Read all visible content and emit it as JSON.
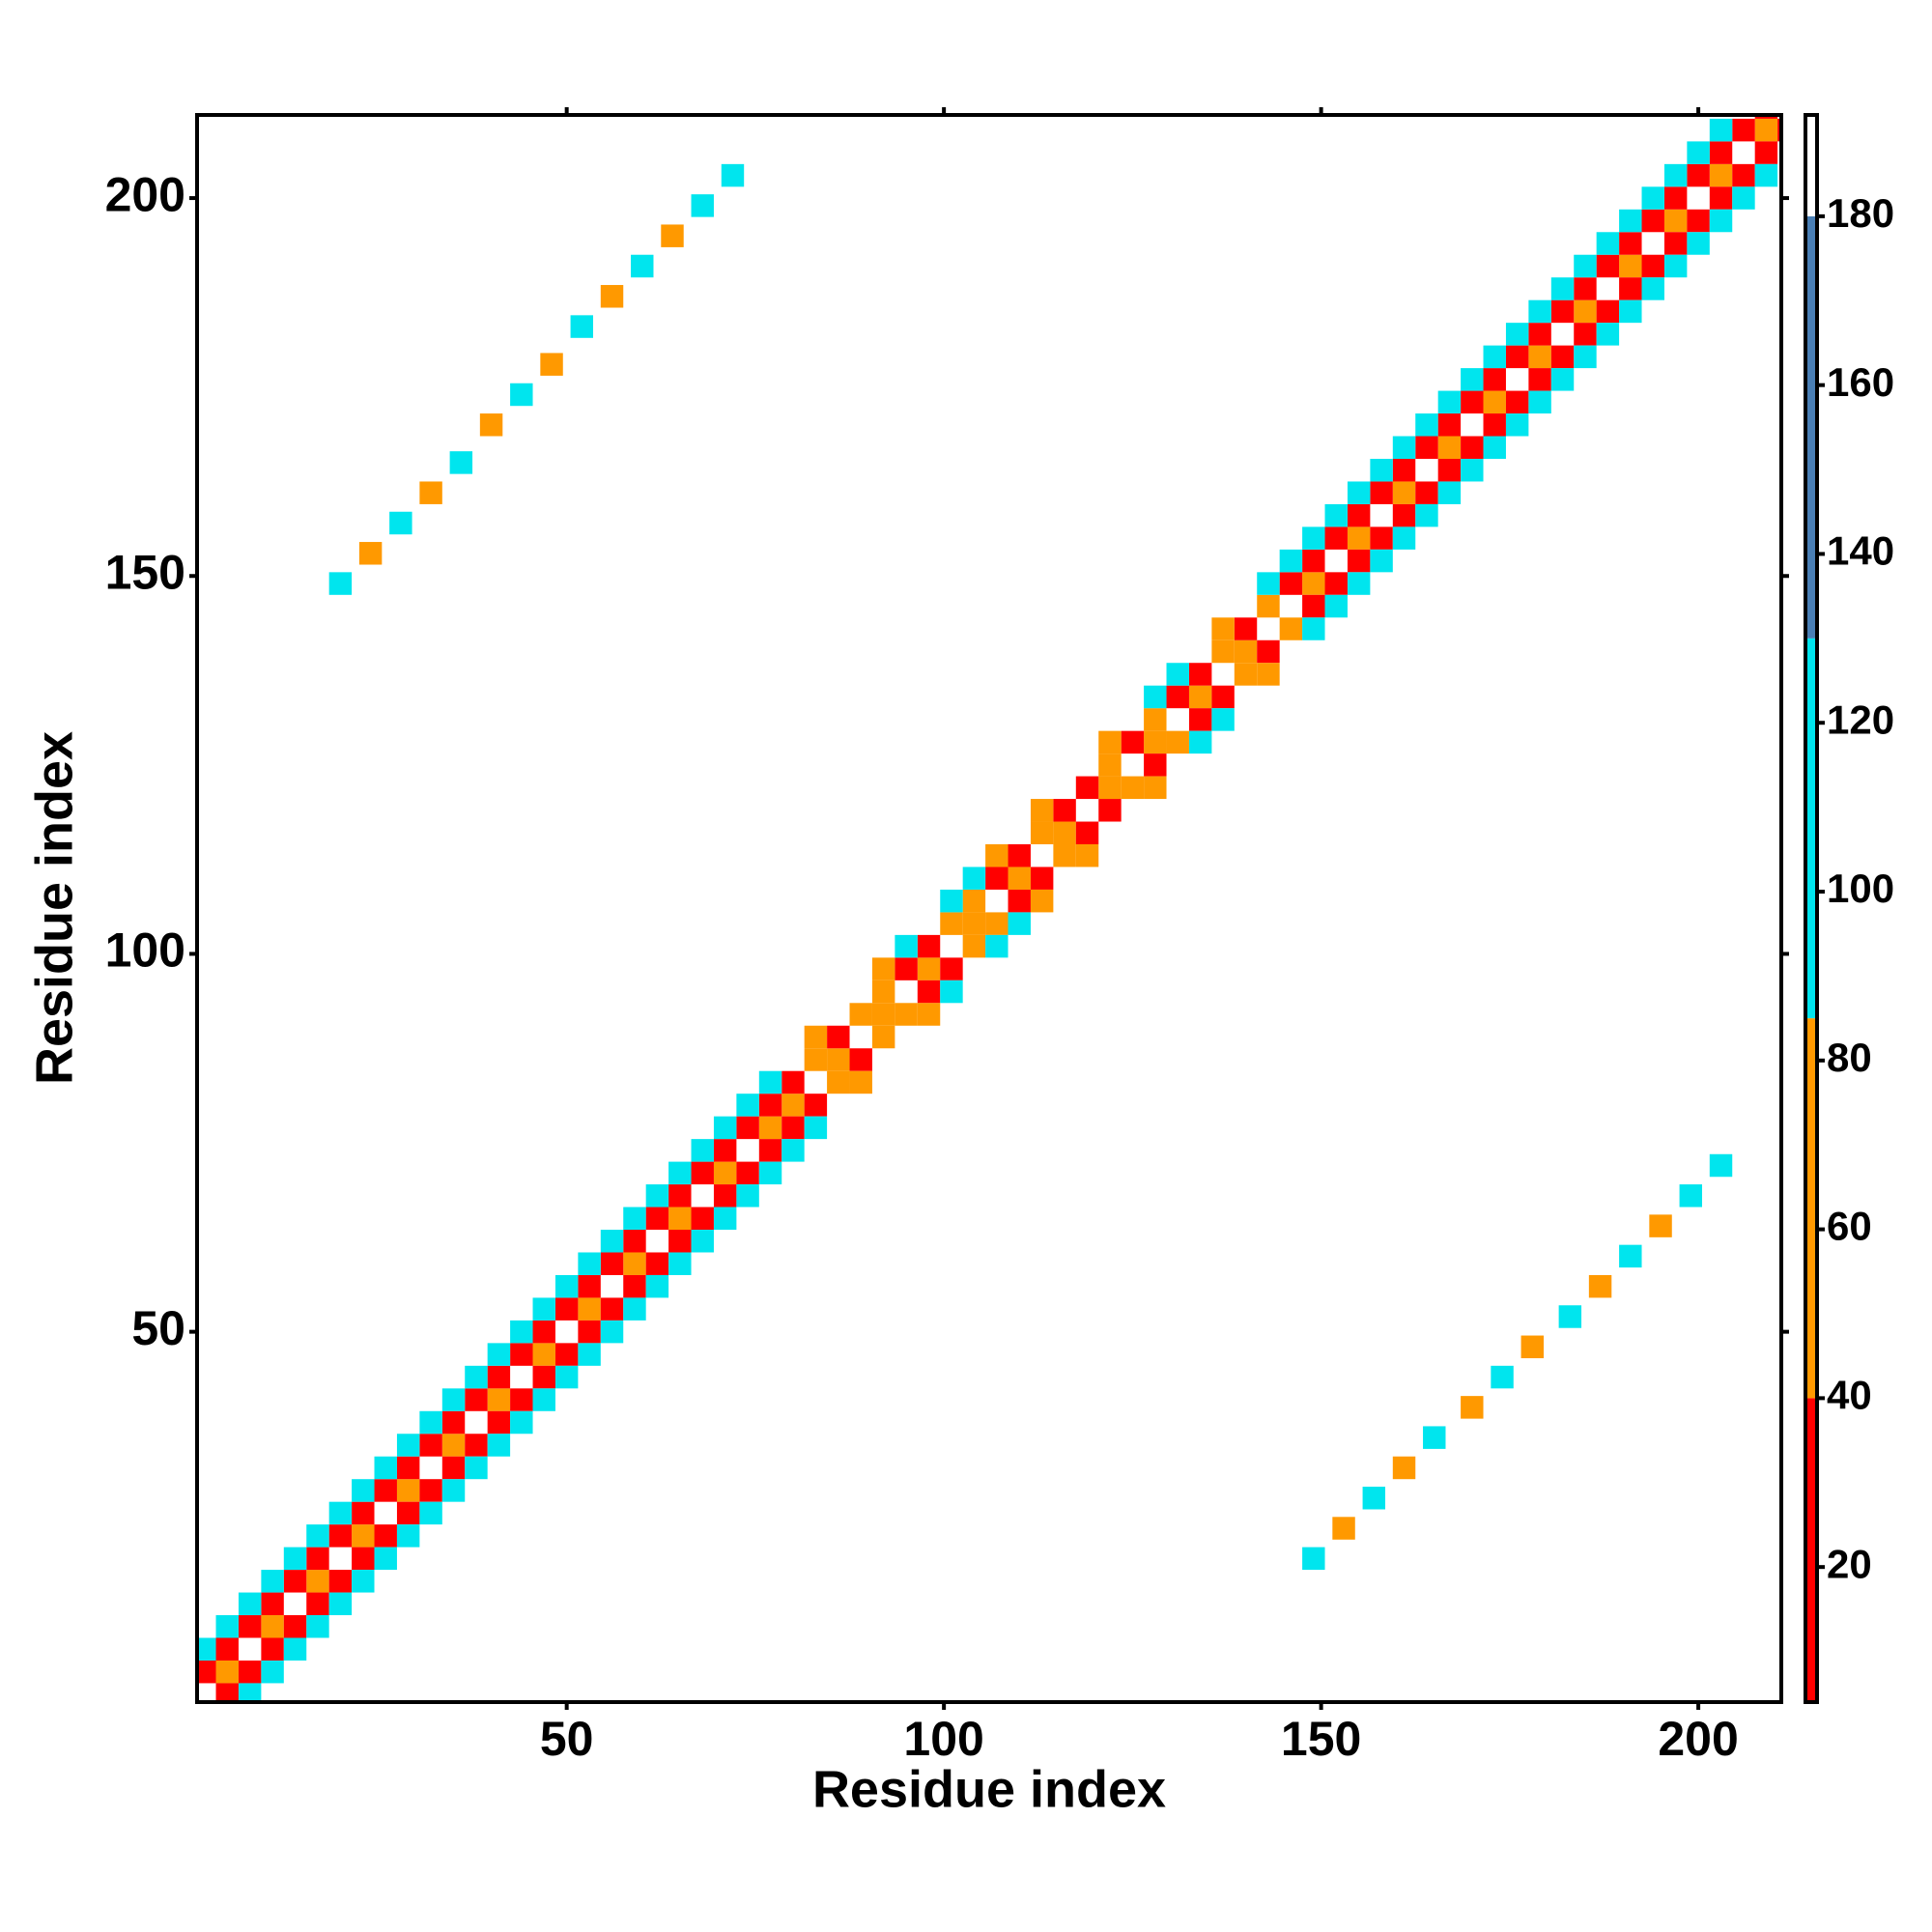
{
  "chart_data": {
    "type": "heatmap",
    "xlabel": "Residue index",
    "ylabel": "Residue index",
    "xlim": [
      1,
      211
    ],
    "ylim": [
      1,
      211
    ],
    "xticks": [
      50,
      100,
      150,
      200
    ],
    "yticks": [
      50,
      100,
      150,
      200
    ],
    "symmetric": true,
    "x": [
      2,
      5,
      8,
      11,
      14,
      17,
      20,
      23,
      26,
      29,
      32,
      35,
      38,
      41,
      44,
      47,
      50,
      53,
      56,
      59,
      62,
      65,
      68,
      71,
      74,
      77,
      80,
      83,
      86,
      89,
      92,
      95,
      98,
      101,
      104,
      107,
      110,
      113,
      116,
      119,
      122,
      125,
      128,
      131,
      134,
      137,
      140,
      143,
      146,
      149,
      152,
      155,
      158,
      161,
      164,
      167,
      170,
      173,
      176,
      179,
      182,
      185,
      188,
      191,
      194,
      197,
      200,
      203,
      206,
      209
    ],
    "diagonals": [
      {
        "offset": 0,
        "values": [
          185,
          60,
          185,
          60,
          185,
          60,
          185,
          60,
          185,
          60,
          185,
          60,
          185,
          60,
          185,
          60,
          185,
          60,
          185,
          60,
          185,
          60,
          185,
          60,
          185,
          60,
          60,
          185,
          60,
          185,
          60,
          185,
          60,
          185,
          60,
          185,
          60,
          185,
          60,
          185,
          60,
          185,
          60,
          185,
          60,
          185,
          60,
          185,
          185,
          60,
          185,
          60,
          185,
          60,
          185,
          60,
          185,
          60,
          185,
          60,
          185,
          60,
          185,
          60,
          185,
          60,
          185,
          60,
          185,
          60
        ]
      },
      {
        "offset": 3,
        "values": [
          25,
          25,
          30,
          25,
          25,
          30,
          25,
          25,
          30,
          25,
          25,
          30,
          25,
          25,
          30,
          25,
          25,
          30,
          25,
          25,
          30,
          25,
          25,
          30,
          25,
          25,
          20,
          55,
          15,
          60,
          55,
          20,
          15,
          55,
          60,
          20,
          15,
          55,
          20,
          15,
          60,
          20,
          55,
          15,
          20,
          60,
          15,
          55,
          25,
          25,
          30,
          25,
          25,
          30,
          25,
          25,
          30,
          25,
          25,
          30,
          25,
          25,
          30,
          25,
          25,
          30,
          25,
          25,
          30,
          25
        ]
      },
      {
        "offset": 6,
        "values": [
          100,
          100,
          100,
          100,
          100,
          100,
          100,
          100,
          100,
          100,
          100,
          100,
          100,
          100,
          100,
          100,
          100,
          100,
          100,
          100,
          100,
          100,
          100,
          100,
          100,
          100,
          null,
          55,
          null,
          null,
          55,
          100,
          null,
          100,
          100,
          55,
          null,
          55,
          null,
          null,
          55,
          null,
          100,
          100,
          null,
          55,
          null,
          100,
          100,
          100,
          100,
          100,
          100,
          100,
          100,
          100,
          100,
          100,
          100,
          100,
          100,
          100,
          100,
          100,
          100,
          100,
          100,
          100,
          null,
          null
        ]
      }
    ],
    "cells": {
      "x": [
        20,
        24,
        28,
        32,
        36,
        40,
        44,
        48,
        52,
        56,
        60,
        64,
        68,
        72
      ],
      "y": [
        149,
        153,
        157,
        161,
        165,
        170,
        174,
        178,
        183,
        187,
        191,
        195,
        199,
        203
      ],
      "values": [
        100,
        60,
        100,
        60,
        100,
        60,
        100,
        60,
        100,
        60,
        100,
        60,
        100,
        100
      ]
    },
    "colorbar": {
      "lim": [
        4,
        192
      ],
      "ticks": [
        20,
        40,
        60,
        80,
        100,
        120,
        140,
        160,
        180
      ],
      "scale": [
        {
          "from": 4,
          "to": 40,
          "color": "#ff0000"
        },
        {
          "from": 40,
          "to": 85,
          "color": "#ff9900"
        },
        {
          "from": 85,
          "to": 130,
          "color": "#00e5ee"
        },
        {
          "from": 130,
          "to": 180,
          "color": "#4a7fb5"
        },
        {
          "from": 180,
          "to": 192,
          "color": "#ffffff"
        }
      ]
    }
  }
}
